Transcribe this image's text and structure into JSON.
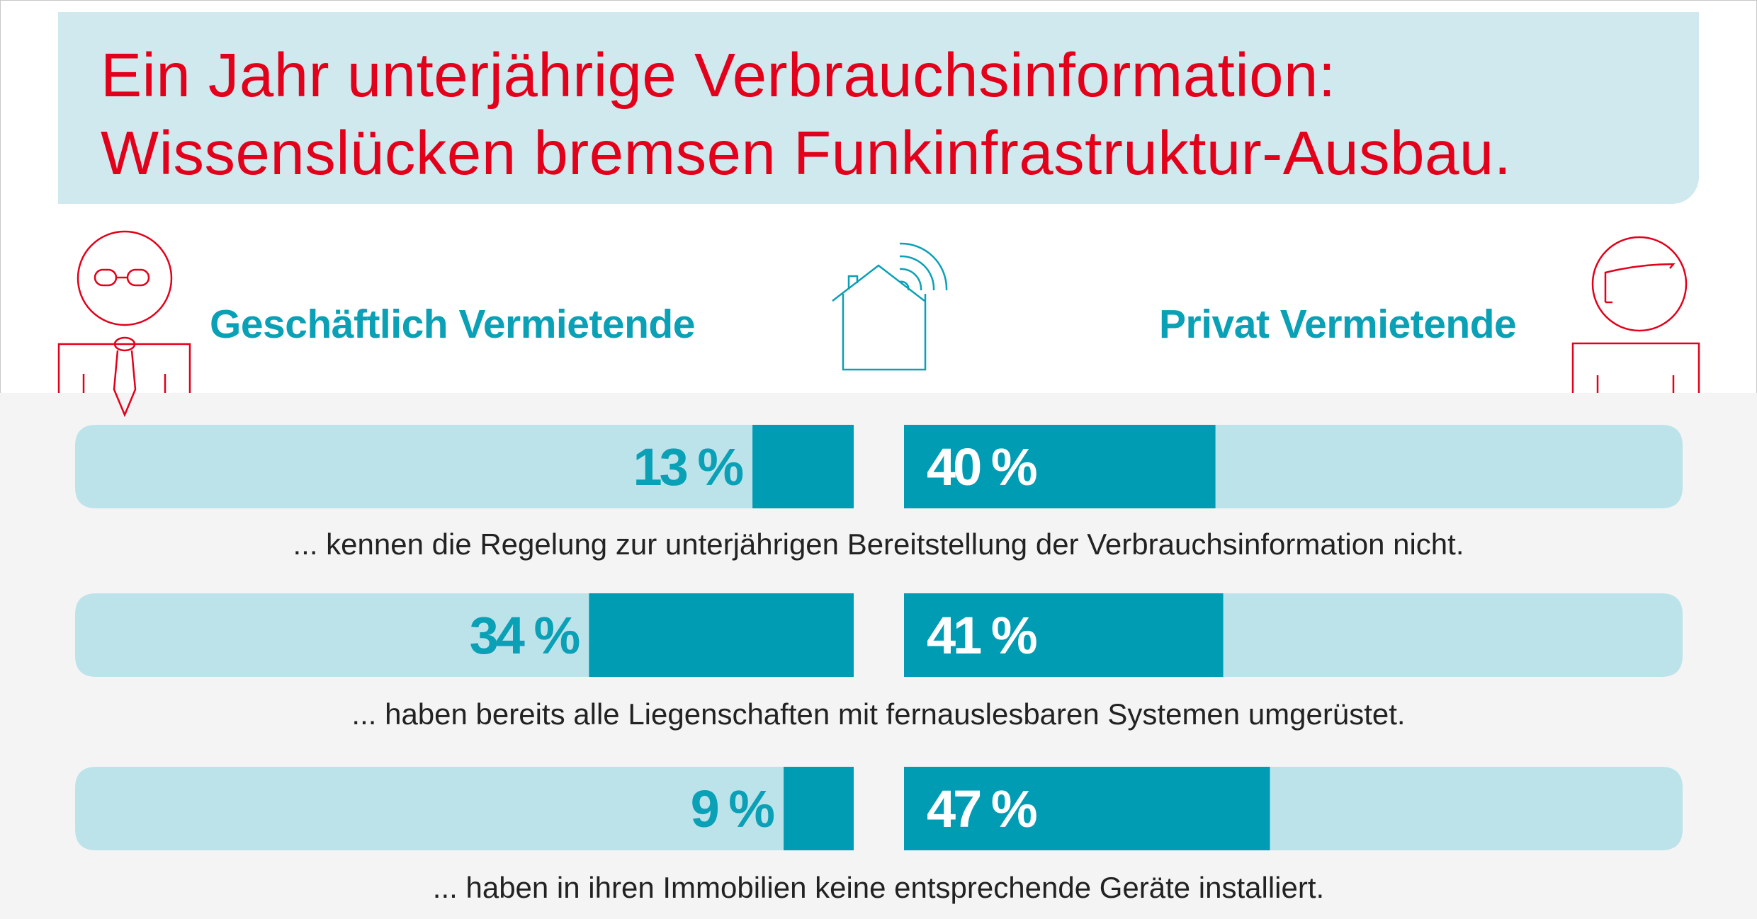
{
  "title": {
    "line1": "Ein Jahr unterjährige Verbrauchsinformation:",
    "line2": "Wissenslücken bremsen Funkinfrastruktur-Ausbau."
  },
  "icons": {
    "left_person": "businessman-with-glasses-and-tie-icon",
    "house": "smart-house-with-wireless-signal-icon",
    "right_person": "private-person-icon"
  },
  "colors": {
    "title_red": "#e2001a",
    "accent_teal": "#0aa0b5",
    "bar_fill": "#009cb4",
    "bar_track": "#bde3ea",
    "title_background": "#cfe9ee",
    "lower_background": "#f4f4f4"
  },
  "chart_data": {
    "type": "bar",
    "orientation": "horizontal-diverging",
    "unit": "%",
    "xlim": [
      0,
      100
    ],
    "series": [
      {
        "name": "Geschäftlich Vermietende",
        "values": [
          13,
          34,
          9
        ],
        "labels": [
          "13 %",
          "34 %",
          "9 %"
        ]
      },
      {
        "name": "Privat Vermietende",
        "values": [
          40,
          41,
          47
        ],
        "labels": [
          "40 %",
          "41 %",
          "47 %"
        ]
      }
    ],
    "categories": [
      "... kennen die Regelung zur unterjährigen Bereitstellung der Verbrauchsinformation nicht.",
      "... haben bereits alle Liegenschaften mit fernauslesbaren Systemen umgerüstet.",
      "... haben in ihren Immobilien keine entsprechende Geräte installiert."
    ]
  }
}
